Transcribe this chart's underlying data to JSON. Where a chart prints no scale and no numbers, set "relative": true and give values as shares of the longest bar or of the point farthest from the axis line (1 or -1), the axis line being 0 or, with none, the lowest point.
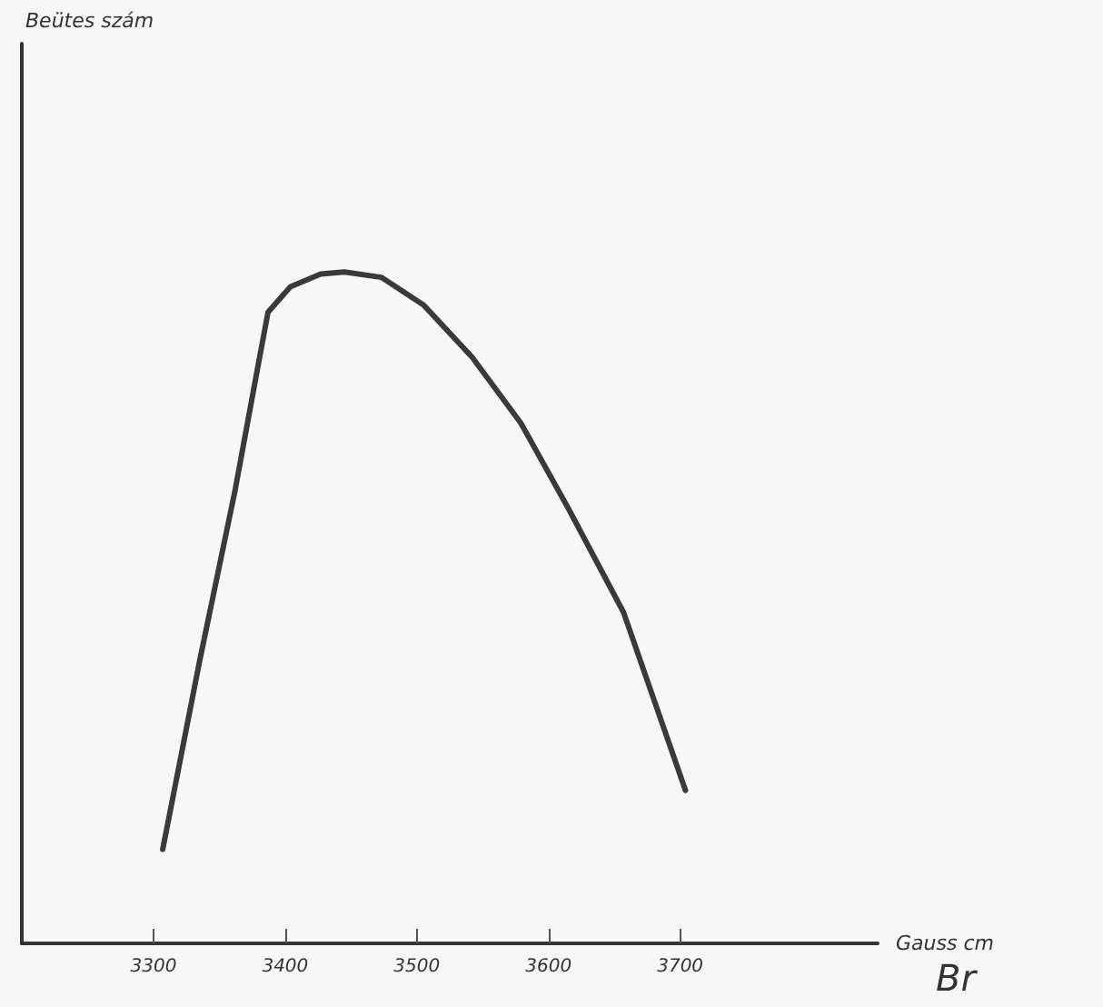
{
  "chart_data": {
    "type": "line",
    "relative": true,
    "xlabel": "Gauss cm",
    "annotations": [
      "Beütes szám",
      "Br"
    ],
    "x": [
      3307,
      3335,
      3362,
      3379,
      3387,
      3404,
      3427,
      3445,
      3473,
      3505,
      3542,
      3579,
      3615,
      3657,
      3704
    ],
    "series": [
      {
        "color": "#3a3a3a",
        "values": [
          0.14,
          0.42,
          0.675,
          0.856,
          0.94,
          0.978,
          0.997,
          1.0,
          0.992,
          0.951,
          0.873,
          0.775,
          0.648,
          0.493,
          0.228
        ]
      }
    ],
    "xlim": [
      3200,
      3850
    ],
    "xticks": [
      3300,
      3400,
      3500,
      3600,
      3700
    ],
    "grid": false,
    "marker": "none",
    "line_style": "solid"
  }
}
